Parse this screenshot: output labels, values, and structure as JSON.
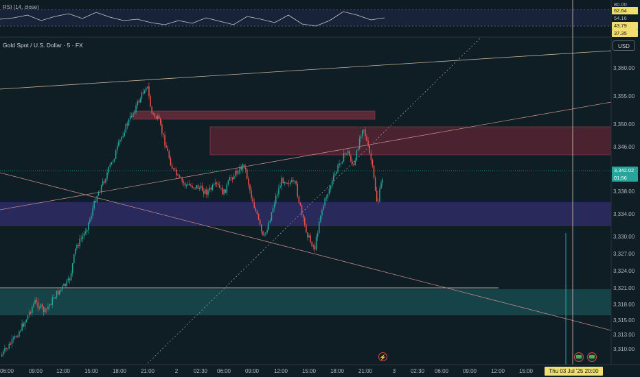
{
  "rsi": {
    "title": "RSI (14, close)",
    "scale": [
      "80.00",
      "62.64",
      "54.16",
      "43.79",
      "37.35"
    ]
  },
  "chart": {
    "symbol": "Gold Spot / U.S. Dollar · 5 · FX",
    "currency": "USD",
    "last_price": "3,342.02",
    "countdown": "01:56",
    "date_marker": "Thu 03 Jul '25  20:00",
    "price_ticks": [
      "3,360.00",
      "3,355.00",
      "3,350.00",
      "3,346.00",
      "3,338.00",
      "3,334.00",
      "3,330.00",
      "3,327.00",
      "3,324.00",
      "3,321.00",
      "3,318.00",
      "3,315.00",
      "3,313.00",
      "3,310.00"
    ],
    "time_ticks": [
      "06:00",
      "09:00",
      "12:00",
      "15:00",
      "18:00",
      "21:00",
      "2",
      "02:30",
      "06:00",
      "09:00",
      "12:00",
      "15:00",
      "18:00",
      "21:00",
      "3",
      "02:30",
      "06:00",
      "09:00",
      "12:00",
      "15:00"
    ]
  },
  "colors": {
    "background": "#0f1d24",
    "up_candle": "#26a69a",
    "down_candle": "#ef5350",
    "resistance_zone": "#5a2a38",
    "mid_zone": "#2e2b66",
    "support_zone": "#17484c",
    "price_tag": "#26a69a",
    "date_tag": "#f0df70"
  },
  "icons": [
    "lightning-icon",
    "calendar-event-icon"
  ]
}
